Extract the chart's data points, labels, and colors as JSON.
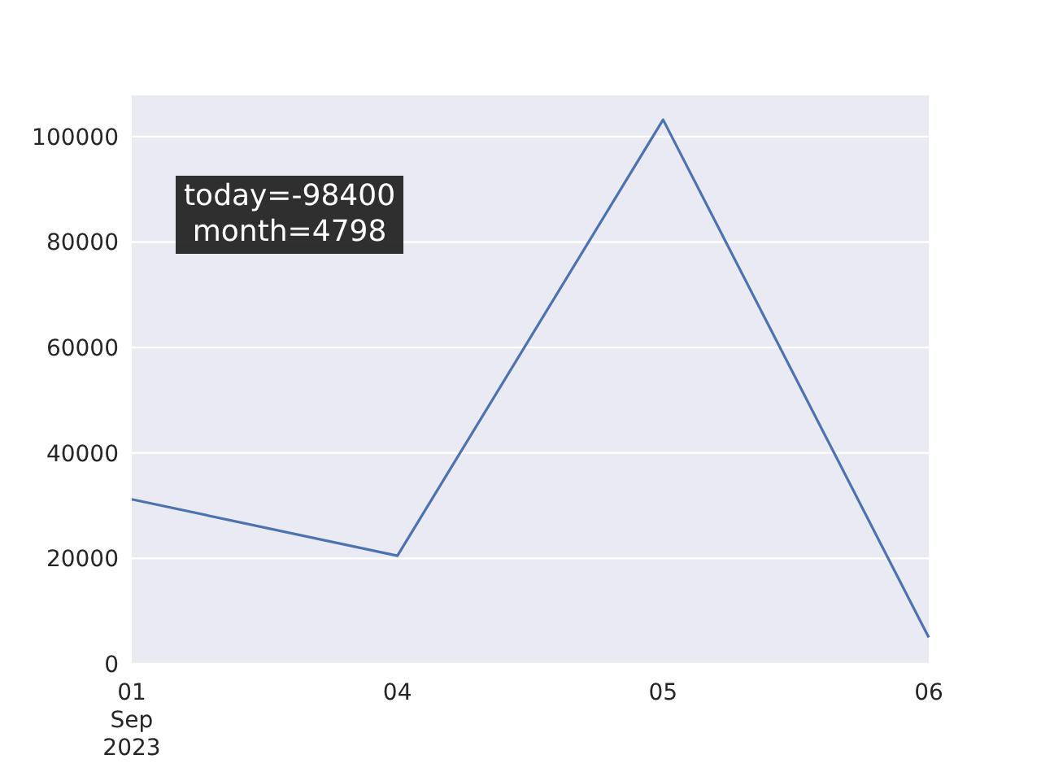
{
  "chart_data": {
    "type": "line",
    "categories": [
      "01\nSep\n2023",
      "04",
      "05",
      "06"
    ],
    "series": [
      {
        "color": "#4c72b0",
        "values": [
          31200,
          20500,
          103200,
          5000
        ]
      }
    ],
    "ylim": [
      0,
      108000
    ],
    "yticks": [
      0,
      20000,
      40000,
      60000,
      80000,
      100000
    ],
    "grid": "y",
    "marker": "none",
    "line_style": "solid",
    "annotations": [
      "today=-98400\nmonth=4798"
    ]
  }
}
